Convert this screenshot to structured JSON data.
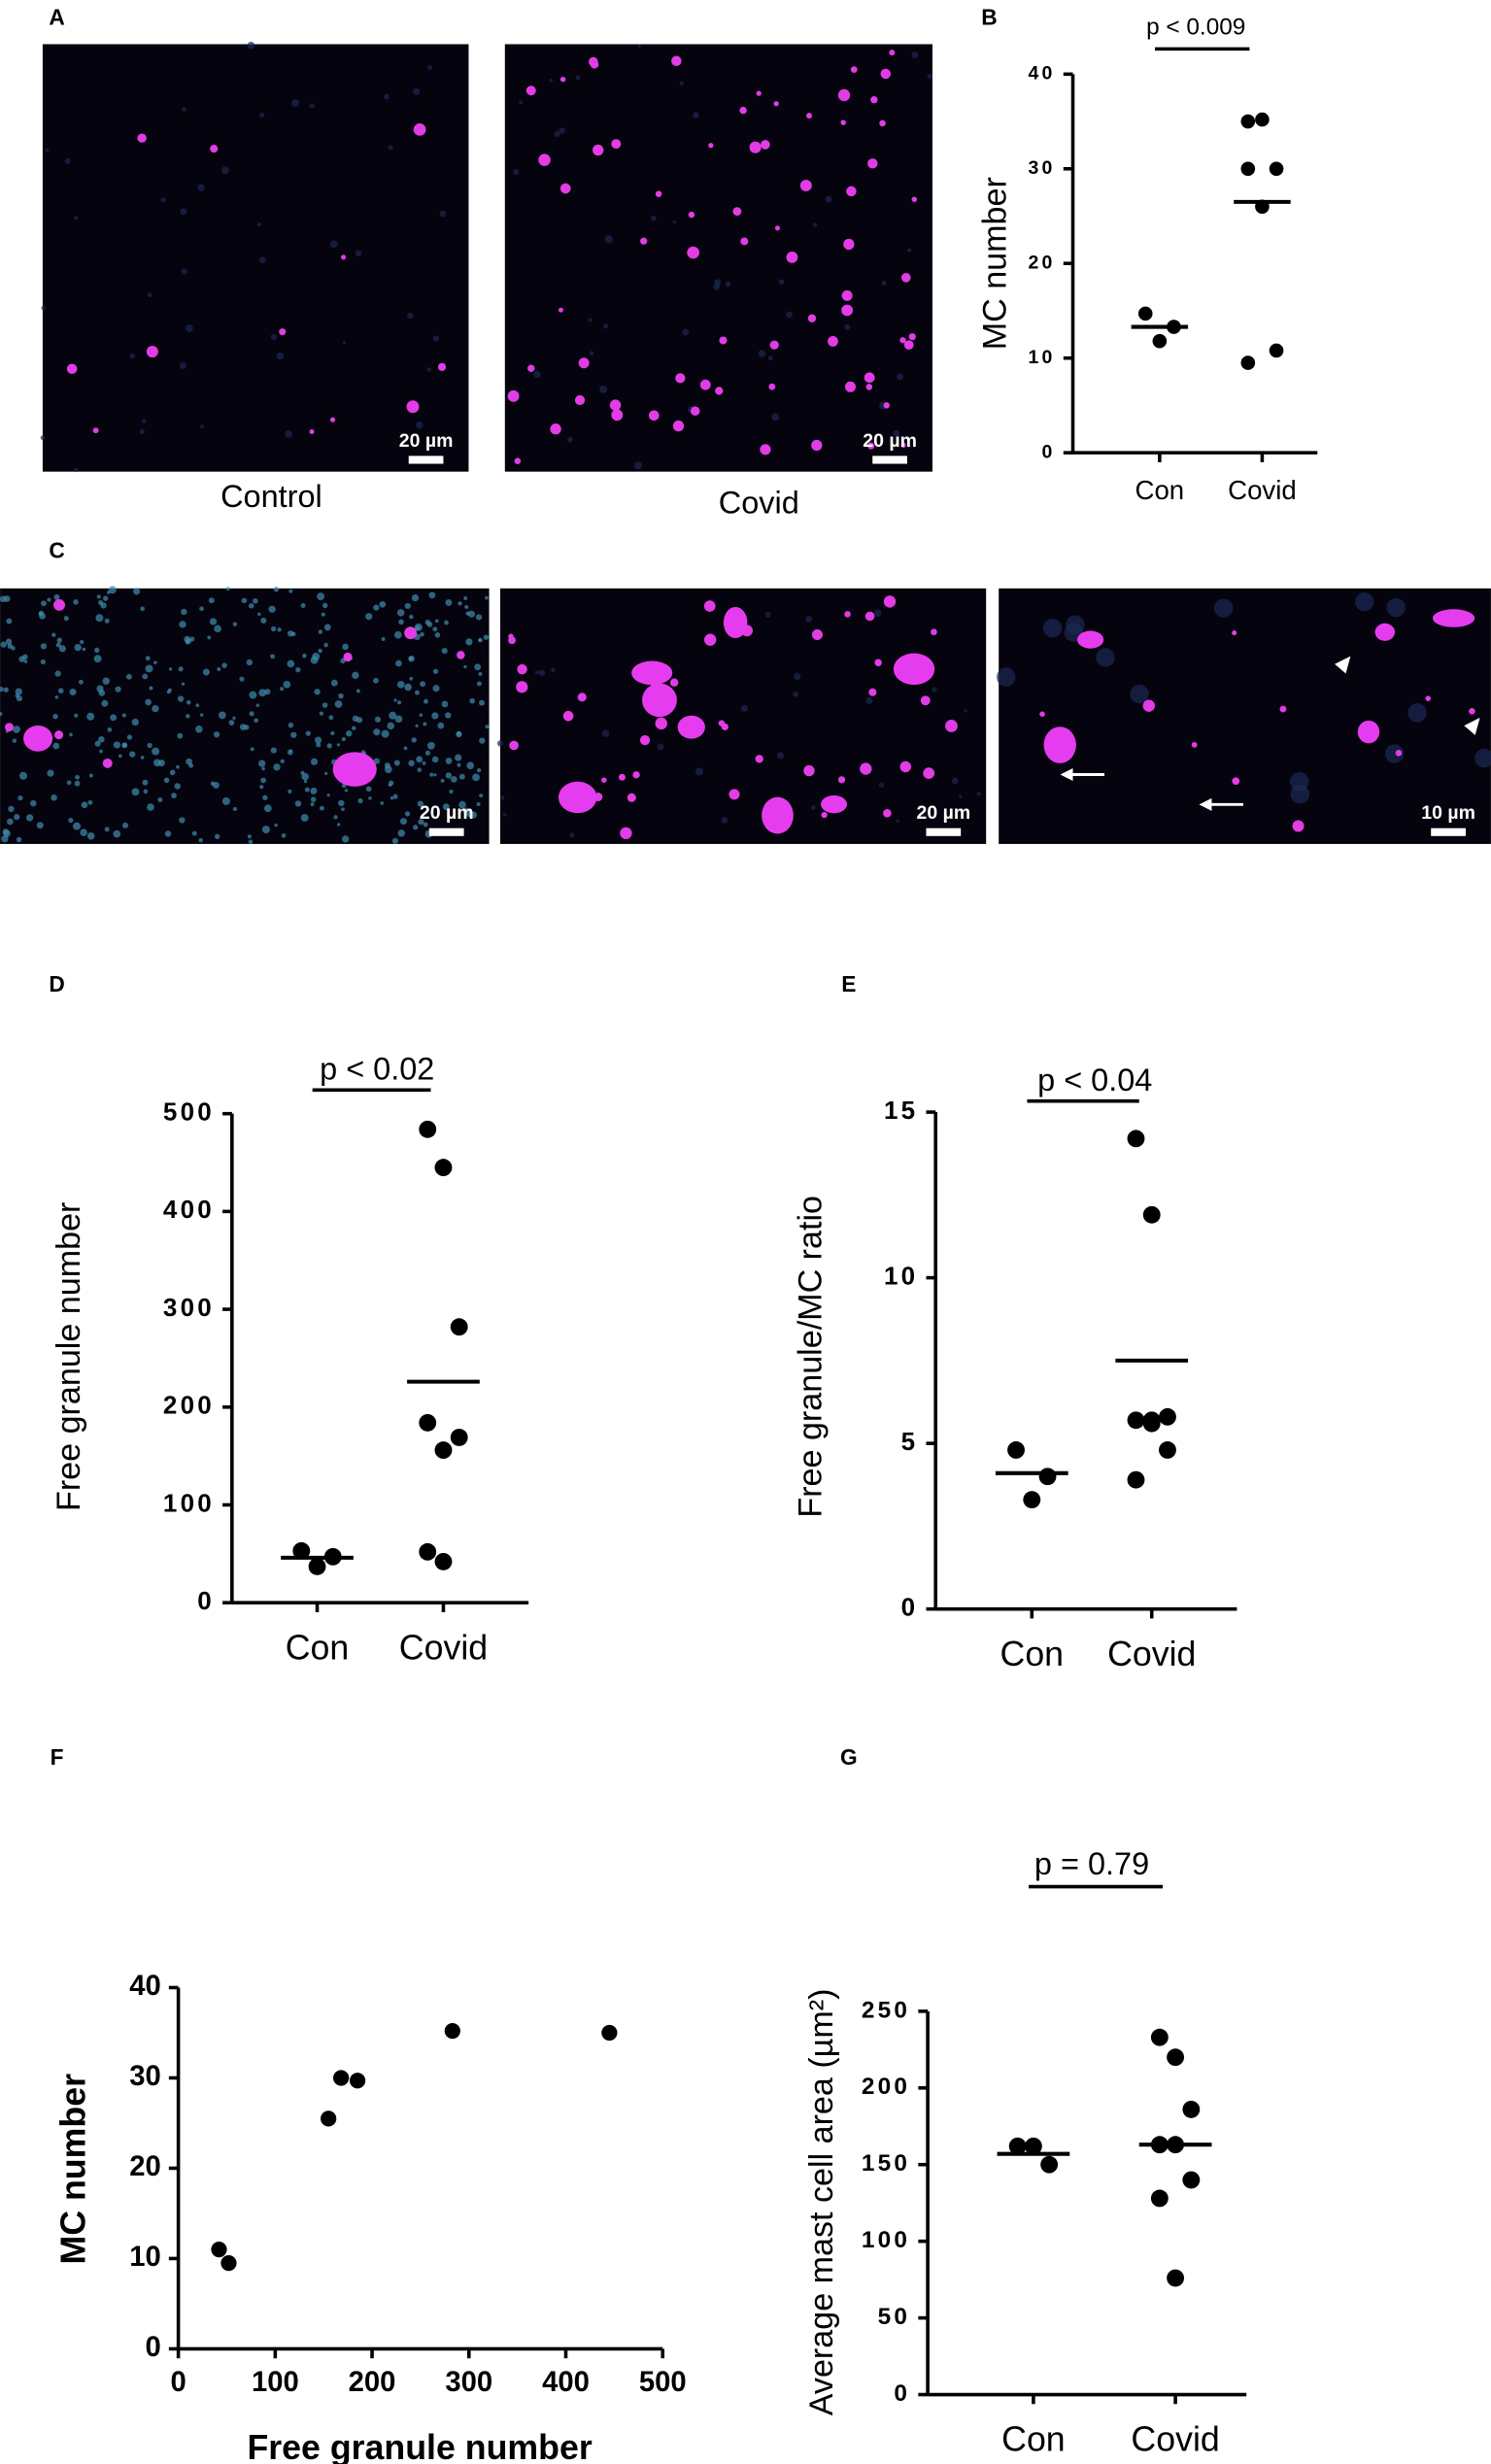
{
  "panels": {
    "labels": [
      "A",
      "B",
      "C",
      "D",
      "E",
      "F",
      "G"
    ]
  },
  "images": [
    {
      "caption": "Control",
      "scale": "20 µm"
    },
    {
      "caption": "Covid",
      "scale": "20 µm"
    },
    {
      "scale": "20 µm"
    },
    {
      "scale": "20 µm"
    },
    {
      "scale": "10 µm"
    }
  ],
  "chart_data": [
    {
      "type": "strip",
      "annotation": "p < 0.009",
      "ylabel": "MC number",
      "categories": [
        "Con",
        "Covid"
      ],
      "values": [
        [
          14.7,
          11.8,
          13.3
        ],
        [
          35,
          35.2,
          30,
          30,
          26,
          10.8,
          9.5
        ]
      ],
      "means": [
        13.3,
        26.5
      ],
      "color": "#000000",
      "ylim": [
        0,
        40
      ],
      "yticks": [
        0,
        10,
        20,
        30,
        40
      ]
    },
    {
      "type": "strip",
      "annotation": "p < 0.02",
      "ylabel": "Free granule number",
      "categories": [
        "Con",
        "Covid"
      ],
      "values": [
        [
          53,
          37,
          47
        ],
        [
          484,
          445,
          282,
          184,
          156,
          169,
          52,
          42
        ]
      ],
      "means": [
        46,
        226
      ],
      "color": "#000000",
      "ylim": [
        0,
        500
      ],
      "yticks": [
        0,
        100,
        200,
        300,
        400,
        500
      ]
    },
    {
      "type": "strip",
      "annotation": "p < 0.04",
      "ylabel": "Free granule/MC ratio",
      "categories": [
        "Con",
        "Covid"
      ],
      "values": [
        [
          4.8,
          3.3,
          4.0
        ],
        [
          14.2,
          11.9,
          5.8,
          5.7,
          5.6,
          4.8,
          3.9,
          5.7
        ]
      ],
      "means": [
        4.1,
        7.5
      ],
      "color": "#000000",
      "ylim": [
        0,
        15
      ],
      "yticks": [
        0,
        5,
        10,
        15
      ]
    },
    {
      "type": "scatter",
      "xlabel": "Free granule number",
      "ylabel": "MC number",
      "x": [
        42,
        52,
        155,
        168,
        185,
        283,
        445
      ],
      "y": [
        11,
        9.5,
        25.5,
        30,
        29.7,
        35.2,
        35
      ],
      "color": "#000000",
      "xlim": [
        0,
        500
      ],
      "xticks": [
        0,
        100,
        200,
        300,
        400,
        500
      ],
      "ylim": [
        0,
        40
      ],
      "yticks": [
        0,
        10,
        20,
        30,
        40
      ]
    },
    {
      "type": "strip",
      "annotation": "p = 0.79",
      "ylabel": "Average mast cell area (µm²)",
      "categories": [
        "Con",
        "Covid"
      ],
      "values": [
        [
          162,
          162,
          150
        ],
        [
          233,
          220,
          186,
          163,
          163,
          140,
          128,
          76
        ]
      ],
      "means": [
        157,
        163
      ],
      "color": "#000000",
      "ylim": [
        0,
        250
      ],
      "yticks": [
        0,
        50,
        100,
        150,
        200,
        250
      ]
    }
  ]
}
